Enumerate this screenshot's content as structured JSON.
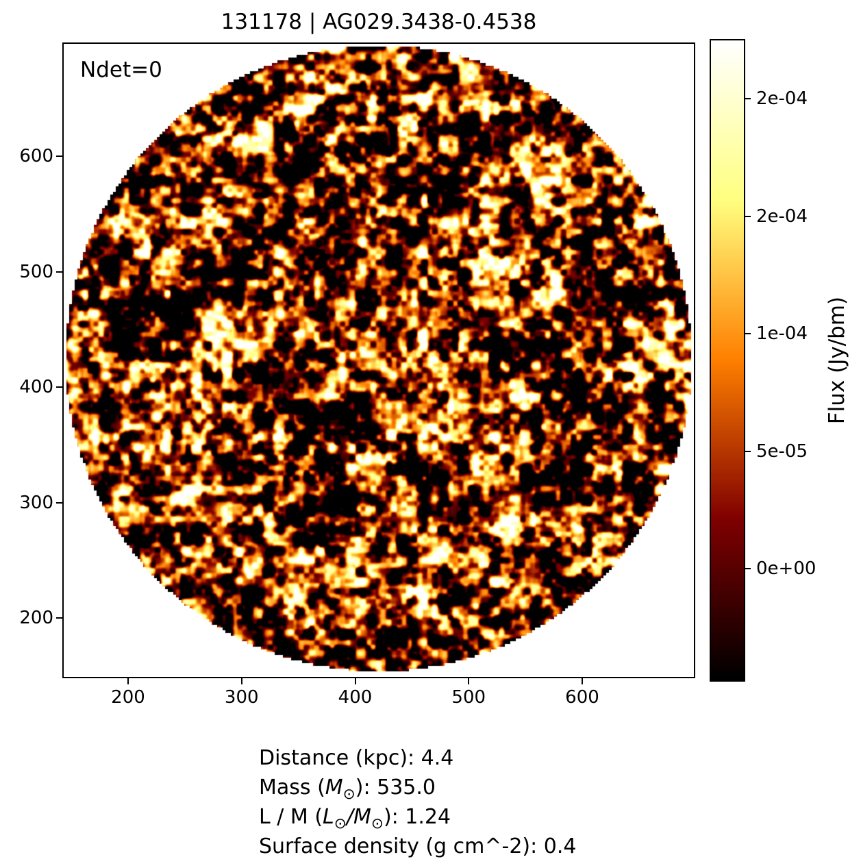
{
  "title": "131178 | AG029.3438-0.4538",
  "annotation": "Ndet=0",
  "axes": {
    "x_tick_labels": [
      "200",
      "300",
      "400",
      "500",
      "600"
    ],
    "y_tick_labels": [
      "600",
      "500",
      "400",
      "300",
      "200"
    ]
  },
  "colorbar": {
    "label": "Flux (Jy/bm)",
    "tick_labels": [
      "2e-04",
      "2e-04",
      "1e-04",
      "5e-05",
      "0e+00"
    ]
  },
  "info_lines": [
    {
      "name": "distance",
      "segments": [
        {
          "t": "Distance (kpc): 4.4",
          "s": "p"
        }
      ]
    },
    {
      "name": "mass",
      "segments": [
        {
          "t": "Mass (",
          "s": "p"
        },
        {
          "t": "M",
          "s": "i"
        },
        {
          "t": "⊙",
          "s": "sub"
        },
        {
          "t": "): 535.0",
          "s": "p"
        }
      ]
    },
    {
      "name": "l-over-m",
      "segments": [
        {
          "t": "L / M (",
          "s": "p"
        },
        {
          "t": "L",
          "s": "i"
        },
        {
          "t": "⊙",
          "s": "sub"
        },
        {
          "t": "/",
          "s": "i"
        },
        {
          "t": "M",
          "s": "i"
        },
        {
          "t": "⊙",
          "s": "sub"
        },
        {
          "t": "): 1.24",
          "s": "p"
        }
      ]
    },
    {
      "name": "surface-density",
      "segments": [
        {
          "t": "Surface density (g cm^-2): 0.4",
          "s": "p"
        }
      ]
    }
  ],
  "colors": {
    "text": "#000000",
    "axis": "#000000",
    "background": "#ffffff"
  },
  "chart_data": {
    "type": "heatmap",
    "title": "131178 | AG029.3438-0.4538",
    "annotation": "Ndet=0",
    "x_ticks": [
      200,
      300,
      400,
      500,
      600
    ],
    "y_ticks": [
      200,
      300,
      400,
      500,
      600
    ],
    "x_range_estimate": [
      143,
      682
    ],
    "y_range_estimate": [
      148,
      697
    ],
    "colorbar_label": "Flux (Jy/bm)",
    "colorbar_tick_labels_bottom_to_top": [
      "0e+00",
      "5e-05",
      "1e-04",
      "2e-04",
      "2e-04"
    ],
    "colorbar_tick_values_bottom_to_top": [
      0,
      5e-05,
      0.0001,
      0.00015,
      0.0002
    ],
    "flux_range_estimate": [
      -5e-05,
      0.000225
    ],
    "colormap": "afmhot",
    "image_content": "circular aperture filled with filamentary random noise (no detections); white outside the circle",
    "source_stats": {
      "distance_kpc": 4.4,
      "mass_msun": 535.0,
      "l_over_m": 1.24,
      "surface_density_g_cm2": 0.4
    },
    "grid": false,
    "legend": false
  }
}
